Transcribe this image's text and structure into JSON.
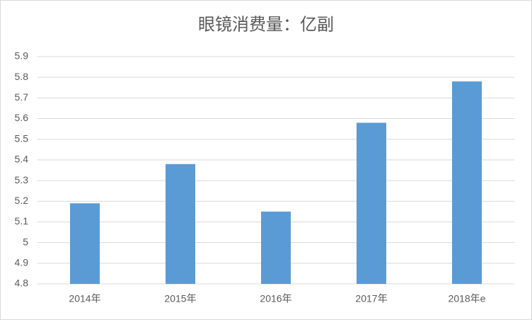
{
  "chart_data": {
    "type": "bar",
    "title": "眼镜消费量：亿副",
    "categories": [
      "2014年",
      "2015年",
      "2016年",
      "2017年",
      "2018年e"
    ],
    "values": [
      5.19,
      5.38,
      5.15,
      5.58,
      5.78
    ],
    "color": "#5b9bd5",
    "ylim": [
      4.8,
      5.9
    ],
    "yticks": [
      4.8,
      4.9,
      5,
      5.1,
      5.2,
      5.3,
      5.4,
      5.5,
      5.6,
      5.7,
      5.8,
      5.9
    ],
    "grid": true
  }
}
